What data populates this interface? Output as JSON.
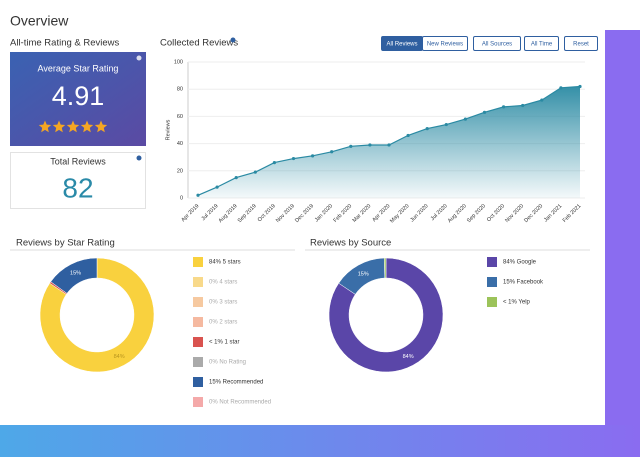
{
  "header": {
    "title": "Overview"
  },
  "rating_panel": {
    "title": "All-time Rating & Reviews",
    "average": {
      "label": "Average Star Rating",
      "value": "4.91"
    },
    "total": {
      "label": "Total Reviews",
      "value": "82"
    }
  },
  "collected": {
    "type": "area",
    "title": "Collected Reviews",
    "buttons": [
      "All Reviews",
      "New Reviews",
      "All Sources",
      "All Time",
      "Reset"
    ],
    "ylabel": "Reviews",
    "categories": [
      "Apr 2019",
      "Jul 2019",
      "Aug 2019",
      "Sep 2019",
      "Oct 2019",
      "Nov 2019",
      "Dec 2019",
      "Jan 2020",
      "Feb 2020",
      "Mar 2020",
      "Apr 2020",
      "May 2020",
      "Jun 2020",
      "Jul 2020",
      "Aug 2020",
      "Sep 2020",
      "Oct 2020",
      "Nov 2020",
      "Dec 2020",
      "Jan 2021",
      "Feb 2021"
    ],
    "values": [
      2,
      8,
      15,
      19,
      26,
      29,
      31,
      34,
      38,
      39,
      39,
      46,
      51,
      54,
      58,
      63,
      67,
      68,
      72,
      81,
      82
    ],
    "color": "#2a8aa3",
    "ylim": [
      0,
      100
    ],
    "yticks": [
      0,
      20,
      40,
      60,
      80,
      100
    ],
    "grid": true
  },
  "star_rating": {
    "type": "donut",
    "title": "Reviews by Star Rating",
    "names": [
      "84% 5 stars",
      "0% 4 stars",
      "0% 3 stars",
      "0% 2 stars",
      "< 1% 1 star",
      "0% No Rating",
      "15% Recommended",
      "0% Not Recommended"
    ],
    "colors": [
      "#f9d13e",
      "#f8d98a",
      "#f6c9a0",
      "#f5b9a0",
      "#d9534f",
      "#aaaaaa",
      "#2f5fa0",
      "#f4a9a9"
    ],
    "values": [
      84,
      0,
      0,
      0,
      0.5,
      0,
      15,
      0
    ],
    "value_labels": [
      "84%",
      null,
      null,
      null,
      null,
      null,
      "15%",
      null
    ]
  },
  "source": {
    "type": "donut",
    "title": "Reviews by Source",
    "names": [
      "84% Google",
      "15% Facebook",
      "< 1% Yelp"
    ],
    "colors": [
      "#5a46a8",
      "#3a6ea8",
      "#9cc35a"
    ],
    "values": [
      84,
      15,
      0.5
    ],
    "value_labels": [
      "84%",
      "15%",
      null
    ]
  }
}
